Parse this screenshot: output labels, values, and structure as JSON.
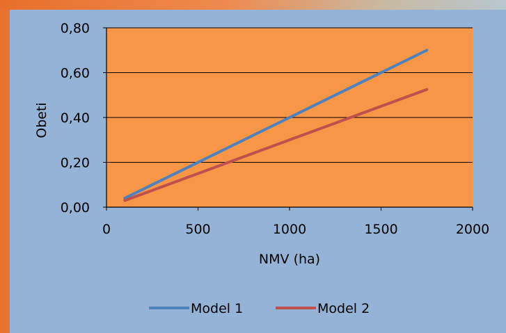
{
  "chart_data": {
    "type": "line",
    "xlabel": "NMV (ha)",
    "ylabel": "Obeti",
    "xlim": [
      0,
      2000
    ],
    "ylim": [
      0,
      0.8
    ],
    "x_ticks": [
      0,
      500,
      1000,
      1500,
      2000
    ],
    "x_tick_labels": [
      "0",
      "500",
      "1000",
      "1500",
      "2000"
    ],
    "y_ticks": [
      0,
      0.2,
      0.4,
      0.6,
      0.8
    ],
    "y_tick_labels": [
      "0,00",
      "0,20",
      "0,40",
      "0,60",
      "0,80"
    ],
    "grid": "horizontal",
    "legend_position": "bottom",
    "plot_background": "#f79646",
    "outer_background": "#95b3d7",
    "series": [
      {
        "name": "Model 1",
        "color": "#4f81bd",
        "x": [
          100,
          1750
        ],
        "y": [
          0.04,
          0.7
        ]
      },
      {
        "name": "Model 2",
        "color": "#c0504d",
        "x": [
          100,
          1750
        ],
        "y": [
          0.03,
          0.525
        ]
      }
    ]
  }
}
